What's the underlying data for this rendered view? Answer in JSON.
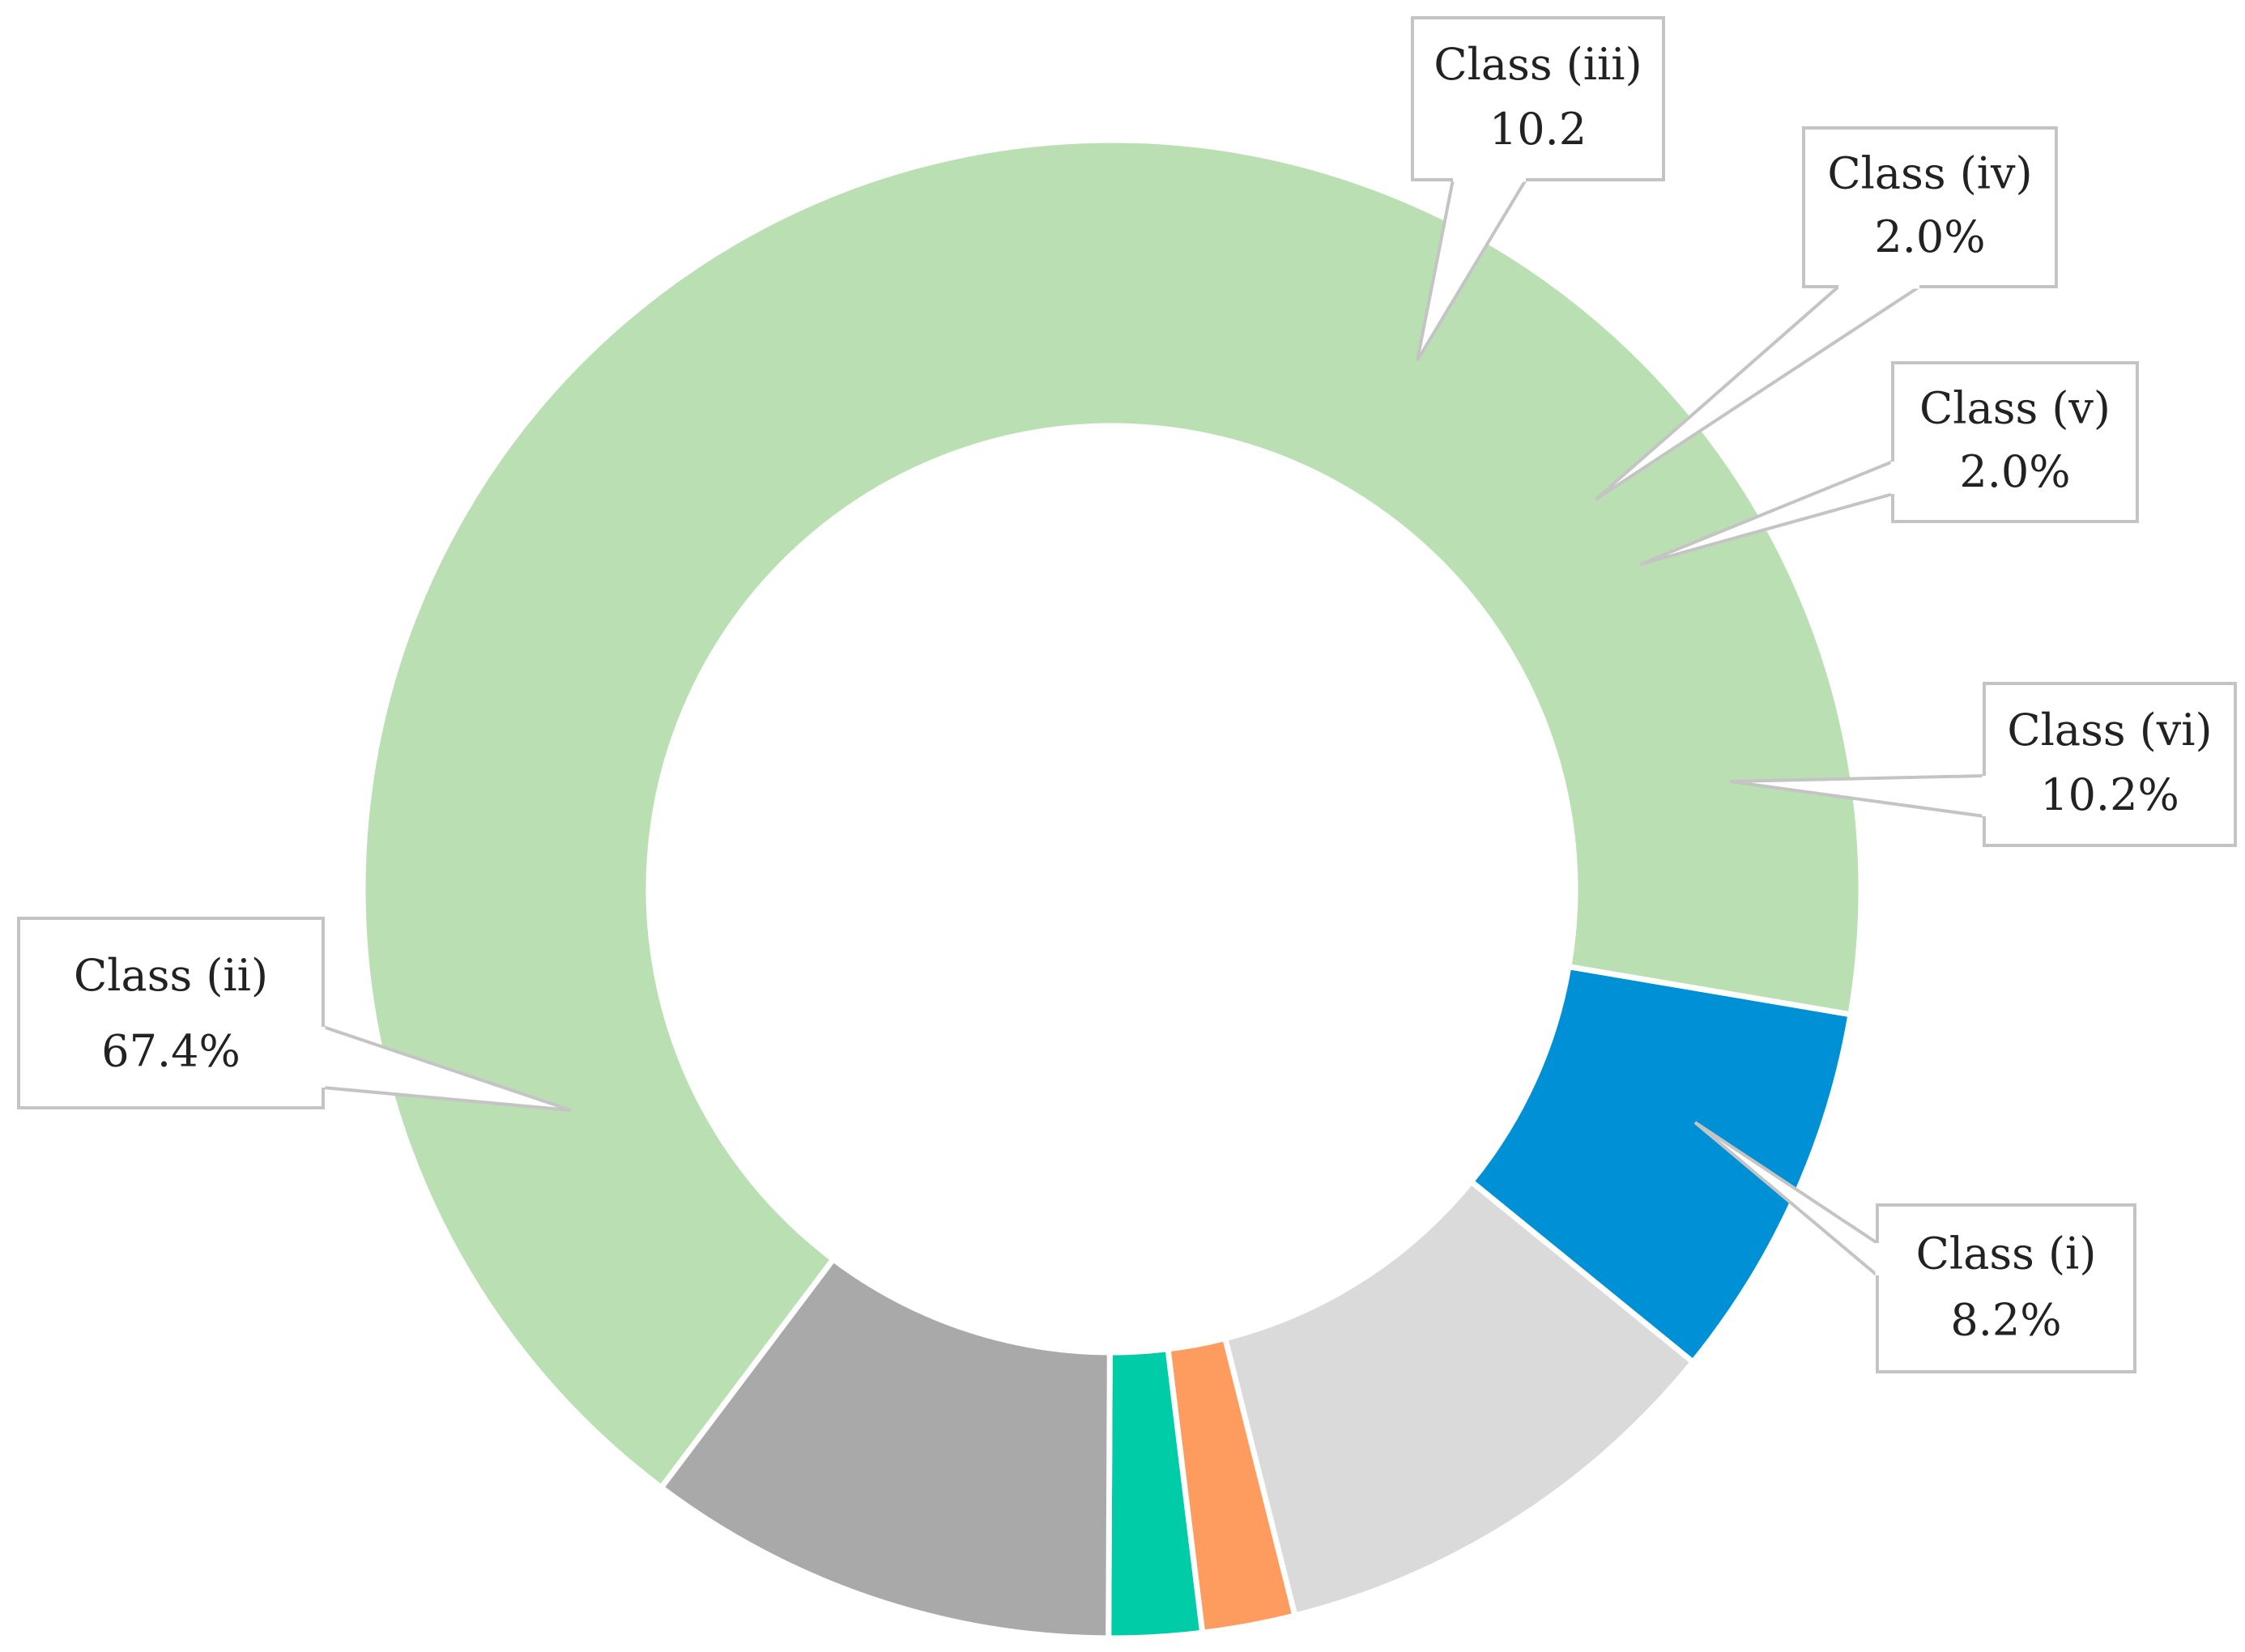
{
  "chart_data": {
    "type": "pie",
    "donut": true,
    "title": "",
    "categories": [
      "Class (i)",
      "Class (vi)",
      "Class (v)",
      "Class (iv)",
      "Class (iii)",
      "Class (ii)"
    ],
    "values": [
      8.2,
      10.2,
      2.0,
      2.0,
      10.2,
      67.4
    ],
    "colors": [
      "#0090d5",
      "#dadada",
      "#fd9c5e",
      "#00cda8",
      "#a9a9a9",
      "#badfb3"
    ],
    "labels": [
      {
        "name": "Class (i)",
        "value_text": "8.2%"
      },
      {
        "name": "Class (vi)",
        "value_text": "10.2%"
      },
      {
        "name": "Class (v)",
        "value_text": "2.0%"
      },
      {
        "name": "Class (iv)",
        "value_text": "2.0%"
      },
      {
        "name": "Class (iii)",
        "value_text": "10.2"
      },
      {
        "name": "Class (ii)",
        "value_text": "67.4%"
      }
    ],
    "legend": "none"
  }
}
